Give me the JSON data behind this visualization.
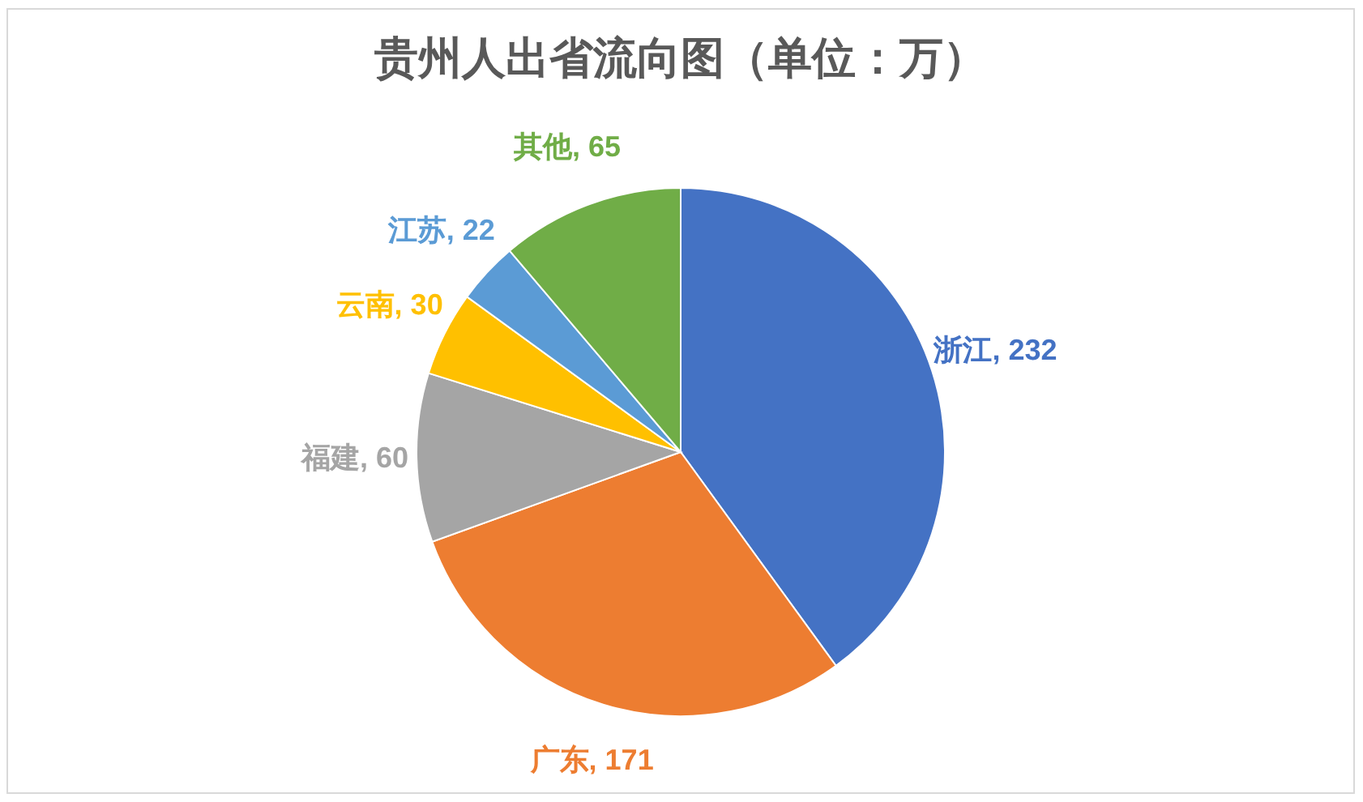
{
  "chart_data": {
    "type": "pie",
    "title": "贵州人出省流向图（单位：万）",
    "categories": [
      "浙江",
      "广东",
      "福建",
      "云南",
      "江苏",
      "其他"
    ],
    "values": [
      232,
      171,
      60,
      30,
      22,
      65
    ],
    "colors": [
      "#4472c4",
      "#ed7d31",
      "#a5a5a5",
      "#ffc000",
      "#5b9bd5",
      "#70ad47"
    ],
    "value_labels": [
      ", 232",
      ", 171",
      ", 60",
      ", 30",
      ", 22",
      ", 65"
    ]
  }
}
